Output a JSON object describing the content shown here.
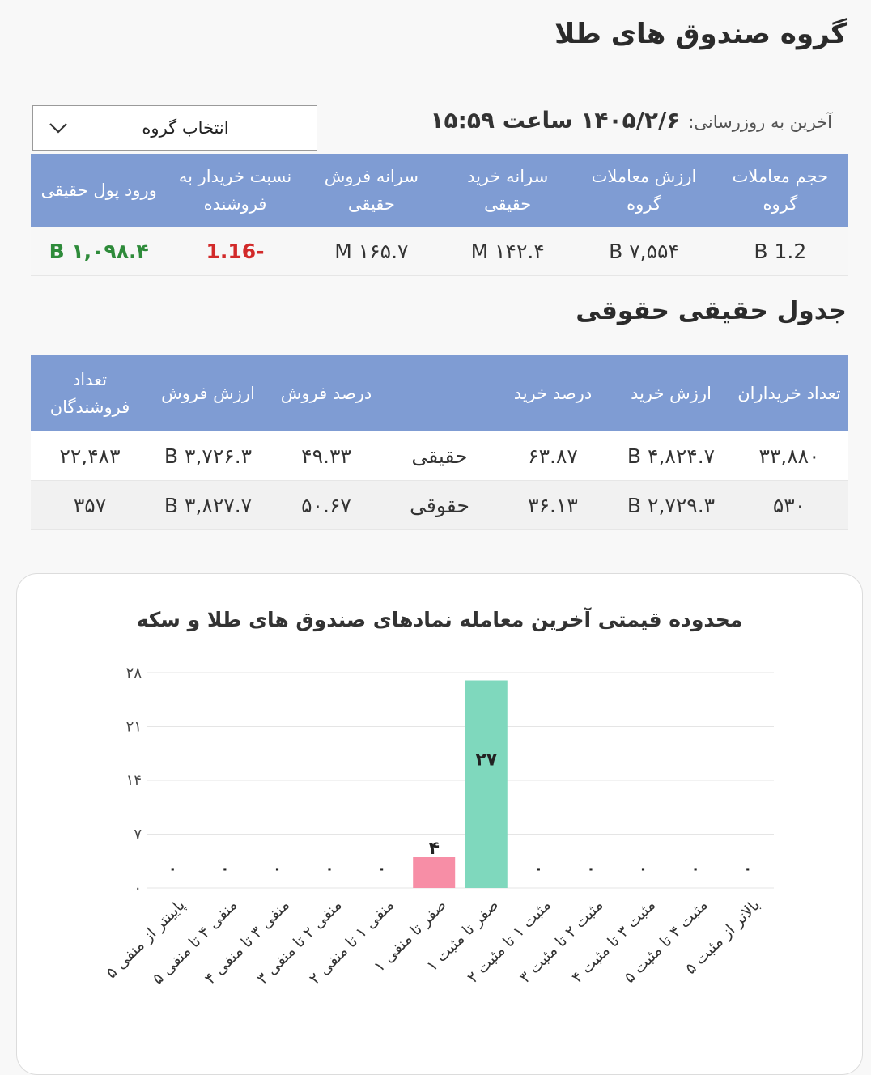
{
  "header": {
    "title": "گروه صندوق های طلا",
    "last_update_label": "آخرین به روزرسانی:",
    "last_update_value": "۱۴۰۵/۲/۶ ساعت ۱۵:۵۹"
  },
  "group_select": {
    "value": "انتخاب گروه"
  },
  "summary": {
    "headers": [
      "حجم معاملات گروه",
      "ارزش معاملات گروه",
      "سرانه خرید حقیقی",
      "سرانه فروش حقیقی",
      "نسبت خریدار به فروشنده",
      "ورود پول حقیقی"
    ],
    "row": [
      "1.2 B",
      "۷,۵۵۴ B",
      "۱۴۲.۴ M",
      "۱۶۵.۷ M",
      "-1.16",
      "۱,۰۹۸.۴ B"
    ]
  },
  "natural_legal": {
    "title": "جدول حقیقی حقوقی",
    "headers": [
      "تعداد خریداران",
      "ارزش خرید",
      "درصد خرید",
      "",
      "درصد فروش",
      "ارزش فروش",
      "تعداد فروشندگان"
    ],
    "rows": [
      [
        "۳۳,۸۸۰",
        "۴,۸۲۴.۷ B",
        "۶۳.۸۷",
        "حقیقی",
        "۴۹.۳۳",
        "۳,۷۲۶.۳ B",
        "۲۲,۴۸۳"
      ],
      [
        "۵۳۰",
        "۲,۷۲۹.۳ B",
        "۳۶.۱۳",
        "حقوقی",
        "۵۰.۶۷",
        "۳,۸۲۷.۷ B",
        "۳۵۷"
      ]
    ]
  },
  "colors": {
    "header_bg": "#7f9cd3",
    "positive": "#2e8b3a",
    "negative": "#d22a2a",
    "bar_negative": "#f78ea6",
    "bar_positive": "#7fd8bd"
  },
  "chart_data": {
    "type": "bar",
    "title": "محدوده قیمتی آخرین معامله نمادهای صندوق های طلا و سکه",
    "categories": [
      "پایینتر از منفی ۵",
      "منفی ۴ تا منفی ۵",
      "منفی ۳ تا منفی ۴",
      "منفی ۲ تا منفی ۳",
      "منفی ۱ تا منفی ۲",
      "صفر تا منفی ۱",
      "صفر تا مثبت ۱",
      "مثبت ۱ تا مثبت ۲",
      "مثبت ۲ تا مثبت ۳",
      "مثبت ۳ تا مثبت ۴",
      "مثبت ۴ تا مثبت ۵",
      "بالاتر از مثبت ۵"
    ],
    "values": [
      0,
      0,
      0,
      0,
      0,
      4,
      27,
      0,
      0,
      0,
      0,
      0
    ],
    "value_labels": [
      "۰",
      "۰",
      "۰",
      "۰",
      "۰",
      "۴",
      "۲۷",
      "۰",
      "۰",
      "۰",
      "۰",
      "۰"
    ],
    "y_ticks": [
      0,
      7,
      14,
      21,
      28
    ],
    "y_tick_labels": [
      "۰",
      "۷",
      "۱۴",
      "۲۱",
      "۲۸"
    ],
    "ylim": [
      0,
      28
    ],
    "grid": true
  }
}
